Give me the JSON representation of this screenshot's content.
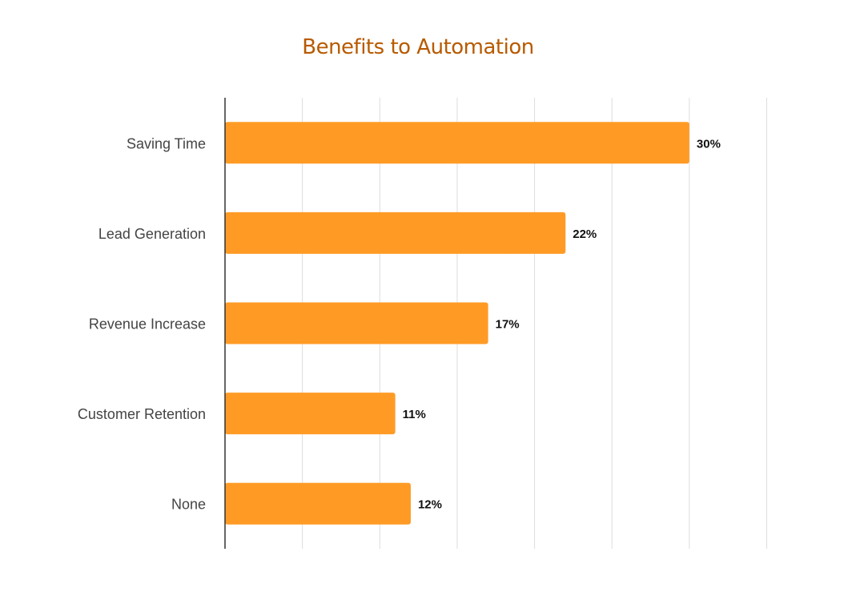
{
  "chart_data": {
    "type": "bar",
    "orientation": "horizontal",
    "title": "Benefits to Automation",
    "categories": [
      "Saving Time",
      "Lead Generation",
      "Revenue Increase",
      "Customer Retention",
      "None"
    ],
    "values": [
      30,
      22,
      17,
      11,
      12
    ],
    "value_labels": [
      "30%",
      "22%",
      "17%",
      "11%",
      "12%"
    ],
    "xlim": [
      0,
      35
    ],
    "grid": true,
    "legend": "none",
    "bar_color": "#ff9b25",
    "title_color": "#b85a00"
  }
}
